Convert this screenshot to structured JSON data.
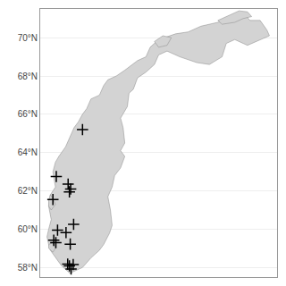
{
  "chart_data": {
    "type": "scatter",
    "xlim": [
      4.0,
      32.0
    ],
    "ylim": [
      57.5,
      71.5
    ],
    "xticks": [],
    "yticks": [
      {
        "value": 58,
        "label": "58°N"
      },
      {
        "value": 60,
        "label": "60°N"
      },
      {
        "value": 62,
        "label": "62°N"
      },
      {
        "value": 64,
        "label": "64°N"
      },
      {
        "value": 66,
        "label": "66°N"
      },
      {
        "value": 68,
        "label": "68°N"
      },
      {
        "value": 70,
        "label": "70°N"
      }
    ],
    "grid": true,
    "tick_labels": "y",
    "series": [
      {
        "type": "area",
        "color": "#d3d3d3",
        "x": [
          28.0,
          28.8,
          30.0,
          30.8,
          31.1,
          29.5,
          28.5,
          27.0,
          26.0,
          25.5,
          24.0,
          22.5,
          20.5,
          19.0,
          18.0,
          17.5,
          16.5,
          15.5,
          15.0,
          14.5,
          14.3,
          13.5,
          13.8,
          14.0,
          13.5,
          14.0,
          13.5,
          12.8,
          12.5,
          12.0,
          12.3,
          12.5,
          12.2,
          11.5,
          11.0,
          10.5,
          10.0,
          9.0,
          8.0,
          7.5,
          6.5,
          5.8,
          5.2,
          5.0,
          4.8,
          5.0,
          5.3,
          5.0,
          5.2,
          5.8,
          5.5,
          5.8,
          6.2,
          7.0,
          7.5,
          8.0,
          8.5,
          9.0,
          9.5,
          10.0,
          11.0,
          11.5,
          12.0,
          13.0,
          14.0,
          15.5,
          16.5,
          17.0,
          18.0,
          20.0,
          21.5,
          23.0,
          25.0,
          26.5,
          28.0
        ],
        "values": [
          71.3,
          70.9,
          70.9,
          70.4,
          70.1,
          69.8,
          69.6,
          69.9,
          69.7,
          69.0,
          68.6,
          68.7,
          69.0,
          69.3,
          69.1,
          68.6,
          68.2,
          67.9,
          67.3,
          67.1,
          66.4,
          65.8,
          65.3,
          64.5,
          64.1,
          63.8,
          63.2,
          62.8,
          62.2,
          61.7,
          61.0,
          60.2,
          59.8,
          59.2,
          58.9,
          58.7,
          58.5,
          58.0,
          57.8,
          57.7,
          58.1,
          58.5,
          58.9,
          59.2,
          59.6,
          60.0,
          60.5,
          61.2,
          61.8,
          62.2,
          63.0,
          63.5,
          63.8,
          64.3,
          64.8,
          65.3,
          65.6,
          66.0,
          66.3,
          66.8,
          67.0,
          67.5,
          67.8,
          68.0,
          68.3,
          68.8,
          69.0,
          69.5,
          69.9,
          70.2,
          70.3,
          70.6,
          70.8,
          71.0,
          71.3
        ]
      },
      {
        "type": "area",
        "color": "#d3d3d3",
        "x": [
          25.0,
          26.0,
          27.5,
          28.5,
          29.0,
          28.0,
          27.0,
          25.5,
          25.0
        ],
        "values": [
          70.9,
          71.1,
          71.4,
          71.35,
          71.1,
          71.0,
          70.8,
          70.7,
          70.9
        ]
      },
      {
        "type": "area",
        "color": "#d3d3d3",
        "x": [
          5.0,
          5.5,
          5.8,
          5.5,
          5.0,
          5.0
        ],
        "values": [
          59.0,
          58.8,
          59.0,
          59.3,
          59.2,
          59.0
        ]
      },
      {
        "type": "area",
        "color": "#d3d3d3",
        "x": [
          5.0,
          5.3,
          5.8,
          5.5,
          5.2,
          5.0,
          5.0
        ],
        "values": [
          61.2,
          61.0,
          61.3,
          61.6,
          61.8,
          61.5,
          61.2
        ]
      },
      {
        "type": "area",
        "color": "#d3d3d3",
        "x": [
          17.5,
          18.5,
          19.5,
          19.0,
          18.0,
          17.5
        ],
        "values": [
          69.8,
          70.1,
          70.0,
          69.6,
          69.5,
          69.8
        ]
      },
      {
        "type": "scatter",
        "marker": "cross",
        "color": "black",
        "x": [
          9.0,
          5.9,
          7.3,
          5.5,
          7.45,
          7.6,
          7.95,
          6.05,
          7.05,
          5.6,
          5.85,
          7.55,
          7.9,
          7.45,
          7.25,
          7.65
        ],
        "values": [
          65.2,
          62.75,
          62.35,
          61.55,
          61.95,
          62.1,
          60.25,
          59.95,
          59.82,
          59.42,
          59.3,
          59.22,
          58.15,
          58.08,
          58.18,
          57.92
        ]
      }
    ]
  }
}
